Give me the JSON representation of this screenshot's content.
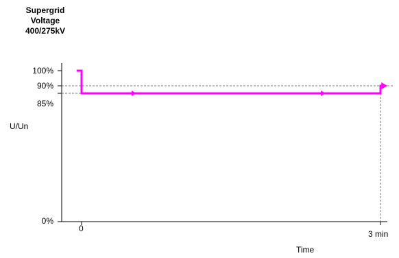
{
  "chart_data": {
    "type": "line",
    "title_lines": [
      "Supergrid",
      "Voltage",
      "400/275kV"
    ],
    "ylabel": "U/Un",
    "xlabel": "Time",
    "y_ticks": [
      "100%",
      "90%",
      "85%",
      "0%"
    ],
    "y_tick_values": [
      100,
      90,
      85,
      0
    ],
    "x_ticks": [
      "0",
      "3 min"
    ],
    "x_tick_values": [
      0,
      3
    ],
    "xunit": "min",
    "ylim": [
      0,
      100
    ],
    "grid": false,
    "series": [
      {
        "color": "#ff00ff",
        "x": [
          -0.05,
          0,
          0,
          3,
          3,
          3.05
        ],
        "y": [
          100,
          100,
          85,
          85,
          90,
          90
        ]
      }
    ],
    "reference_lines": [
      {
        "orientation": "horizontal",
        "value": 90,
        "style": "dashed"
      },
      {
        "orientation": "horizontal",
        "value": 85,
        "style": "dashed"
      },
      {
        "orientation": "vertical",
        "value": 3,
        "style": "dashed"
      }
    ]
  }
}
